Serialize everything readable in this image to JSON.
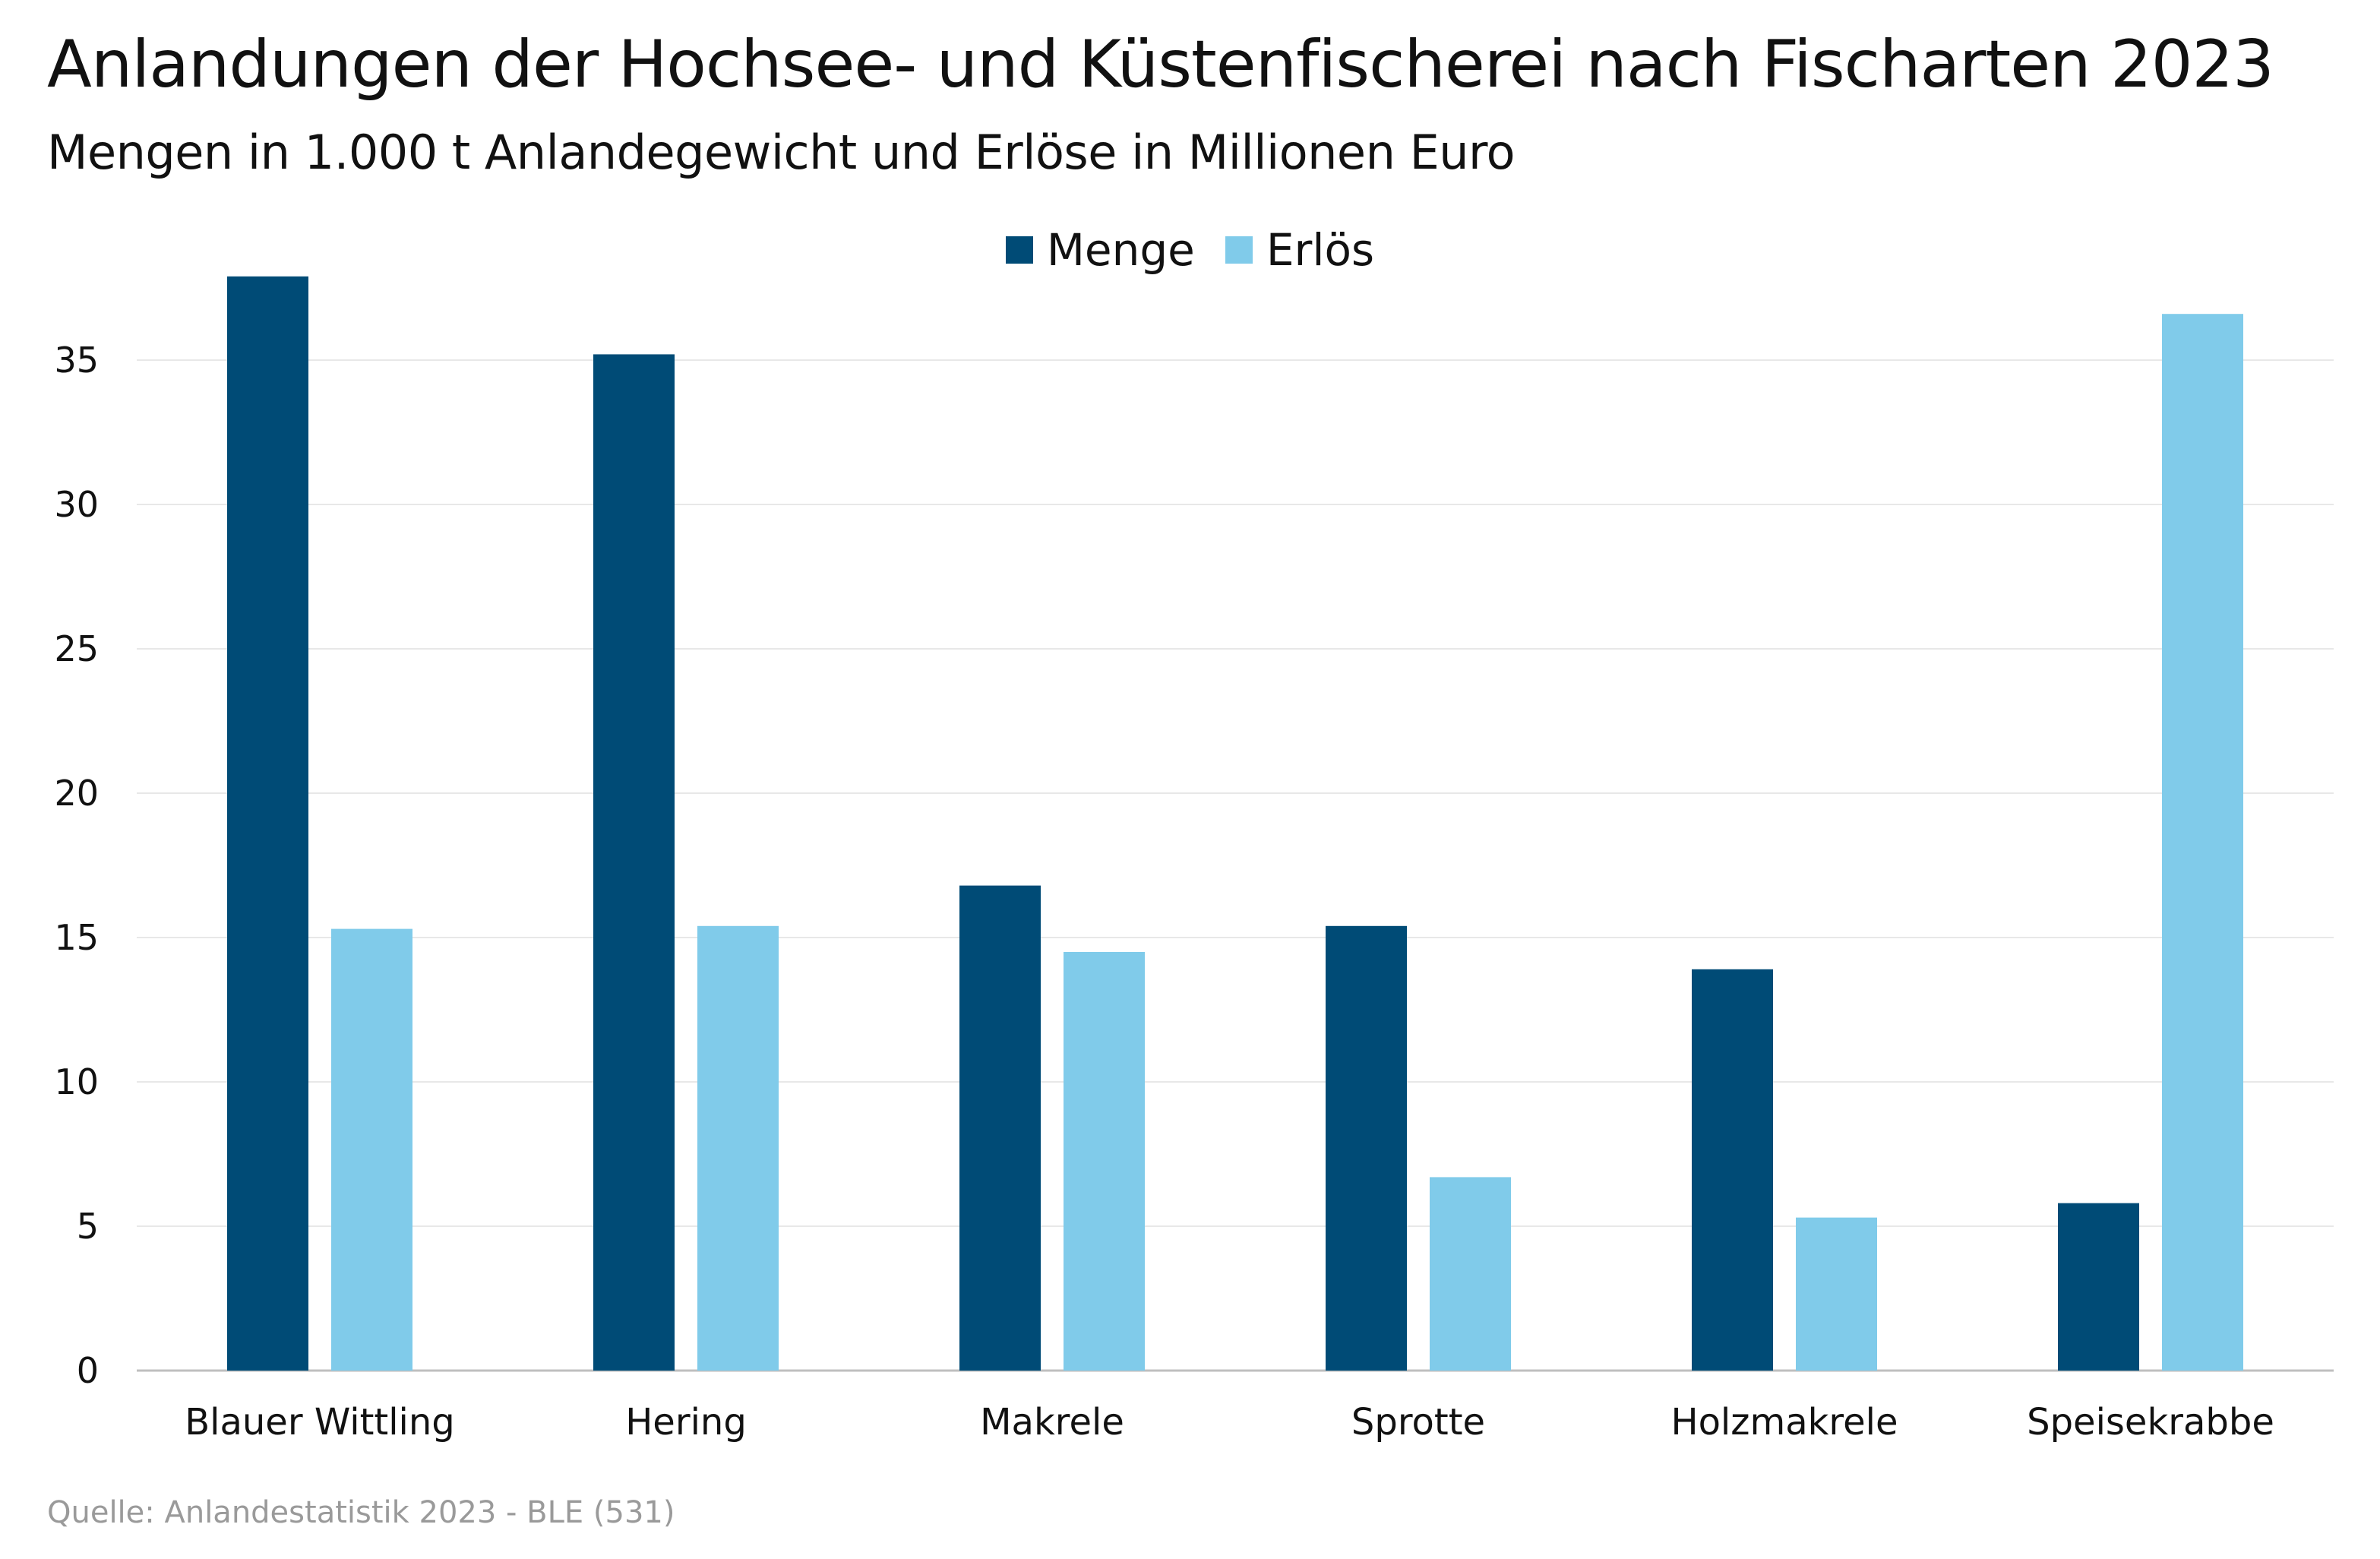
{
  "title": "Anlandungen der Hochsee- und Küstenfischerei nach Fischarten 2023",
  "subtitle": "Mengen in 1.000 t Anlandegewicht und Erlöse in Millionen Euro",
  "source": "Quelle: Anlandestatistik 2023 - BLE (531)",
  "colors": {
    "menge": "#004b76",
    "erloes": "#80cbea",
    "grid": "#e8e8e8",
    "axis": "#bfbfbf"
  },
  "chart_data": {
    "type": "bar",
    "title": "Anlandungen der Hochsee- und Küstenfischerei nach Fischarten 2023",
    "subtitle": "Mengen in 1.000 t Anlandegewicht und Erlöse in Millionen Euro",
    "xlabel": "",
    "ylabel": "",
    "categories": [
      "Blauer Wittling",
      "Hering",
      "Makrele",
      "Sprotte",
      "Holzmakrele",
      "Speisekrabbe"
    ],
    "series": [
      {
        "name": "Menge",
        "values": [
          37.9,
          35.2,
          16.8,
          15.4,
          13.9,
          5.8
        ]
      },
      {
        "name": "Erlös",
        "values": [
          15.3,
          15.4,
          14.5,
          6.7,
          5.3,
          36.6
        ]
      }
    ],
    "ylim": [
      0,
      38
    ],
    "yticks": [
      0,
      5,
      10,
      15,
      20,
      25,
      30,
      35
    ],
    "grid": true,
    "legend": "top-center"
  }
}
